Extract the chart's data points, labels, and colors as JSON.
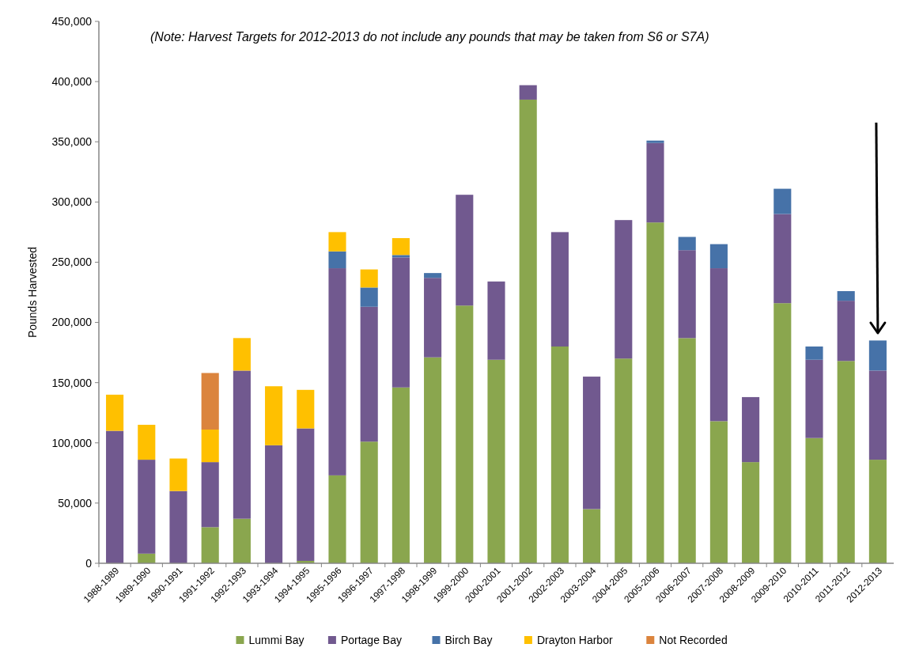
{
  "chart_data": {
    "type": "bar",
    "stacked": true,
    "ylabel": "Pounds Harvested",
    "annotations": [
      "(Note: Harvest Targets for 2012-2013 do not include any pounds that may be taken from S6 or S7A)"
    ],
    "categories": [
      "1988-1989",
      "1989-1990",
      "1990-1991",
      "1991-1992",
      "1992-1993",
      "1993-1994",
      "1994-1995",
      "1995-1996",
      "1996-1997",
      "1997-1998",
      "1998-1999",
      "1999-2000",
      "2000-2001",
      "2001-2002",
      "2002-2003",
      "2003-2004",
      "2004-2005",
      "2005-2006",
      "2006-2007",
      "2007-2008",
      "2008-2009",
      "2009-2010",
      "2010-2011",
      "2011-2012",
      "2012-2013"
    ],
    "series": [
      {
        "name": "Lummi Bay",
        "color": "#8aa64e",
        "values": [
          0,
          8000,
          0,
          30000,
          37000,
          0,
          2000,
          73000,
          101000,
          146000,
          171000,
          214000,
          169000,
          385000,
          180000,
          45000,
          170000,
          283000,
          187000,
          118000,
          84000,
          216000,
          104000,
          168000,
          86000
        ]
      },
      {
        "name": "Portage Bay",
        "color": "#71598f",
        "values": [
          110000,
          78000,
          60000,
          54000,
          123000,
          98000,
          110000,
          172000,
          112000,
          108000,
          66000,
          92000,
          65000,
          12000,
          95000,
          110000,
          115000,
          66000,
          73000,
          127000,
          54000,
          74000,
          65000,
          50000,
          74000
        ]
      },
      {
        "name": "Birch Bay",
        "color": "#4672a8",
        "values": [
          0,
          0,
          0,
          0,
          0,
          0,
          0,
          14000,
          16000,
          2000,
          4000,
          0,
          0,
          0,
          0,
          0,
          0,
          2000,
          11000,
          20000,
          0,
          21000,
          11000,
          8000,
          25000
        ]
      },
      {
        "name": "Drayton Harbor",
        "color": "#ffc000",
        "values": [
          30000,
          29000,
          27000,
          27000,
          27000,
          49000,
          32000,
          16000,
          15000,
          14000,
          0,
          0,
          0,
          0,
          0,
          0,
          0,
          0,
          0,
          0,
          0,
          0,
          0,
          0,
          0
        ]
      },
      {
        "name": "Not Recorded",
        "color": "#db843d",
        "values": [
          0,
          0,
          0,
          47000,
          0,
          0,
          0,
          0,
          0,
          0,
          0,
          0,
          0,
          0,
          0,
          0,
          0,
          0,
          0,
          0,
          0,
          0,
          0,
          0,
          0
        ]
      }
    ],
    "ylim": [
      0,
      450000
    ],
    "yticks": [
      0,
      {
        "value": 50000,
        "label": "50,000"
      },
      {
        "value": 100000,
        "label": "100,000"
      },
      {
        "value": 150000,
        "label": "150,000"
      },
      {
        "value": 200000,
        "label": "200,000"
      },
      {
        "value": 250000,
        "label": "250,000"
      },
      {
        "value": 300000,
        "label": "300,000"
      },
      {
        "value": 350000,
        "label": "350,000"
      },
      {
        "value": 400000,
        "label": "400,000"
      },
      {
        "value": 450000,
        "label": "450,000"
      }
    ],
    "legend": "bottom",
    "grid": false
  }
}
